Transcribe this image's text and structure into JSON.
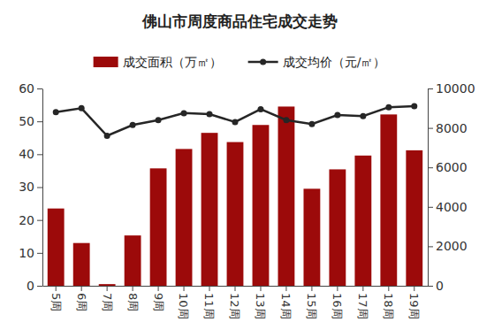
{
  "chart_data": {
    "type": "bar",
    "title": "佛山市周度商品住宅成交走势",
    "categories": [
      "5周",
      "6周",
      "7周",
      "8周",
      "9周",
      "10周",
      "11周",
      "12周",
      "13周",
      "14周",
      "15周",
      "16周",
      "17周",
      "18周",
      "19周"
    ],
    "series": [
      {
        "name": "成交面积（万㎡）",
        "type": "bar",
        "color": "#9c0a0a",
        "values": [
          23.5,
          13,
          0.5,
          15.3,
          35.7,
          41.6,
          46.5,
          43.7,
          48.9,
          54.5,
          29.5,
          35.4,
          39.6,
          52.1,
          41.2
        ]
      },
      {
        "name": "成交均价（元/㎡）",
        "type": "line",
        "axis": "y2",
        "color": "#262626",
        "marker": "circle",
        "values": [
          8800,
          9000,
          7600,
          8150,
          8400,
          8750,
          8700,
          8300,
          8950,
          8400,
          8200,
          8650,
          8600,
          9050,
          9100
        ]
      }
    ],
    "ylim": [
      0,
      60
    ],
    "yticks": [
      0,
      10,
      20,
      30,
      40,
      50,
      60
    ],
    "y2lim": [
      0,
      10000
    ],
    "y2ticks": [
      0,
      2000,
      4000,
      6000,
      8000,
      10000
    ],
    "legend": "top"
  }
}
